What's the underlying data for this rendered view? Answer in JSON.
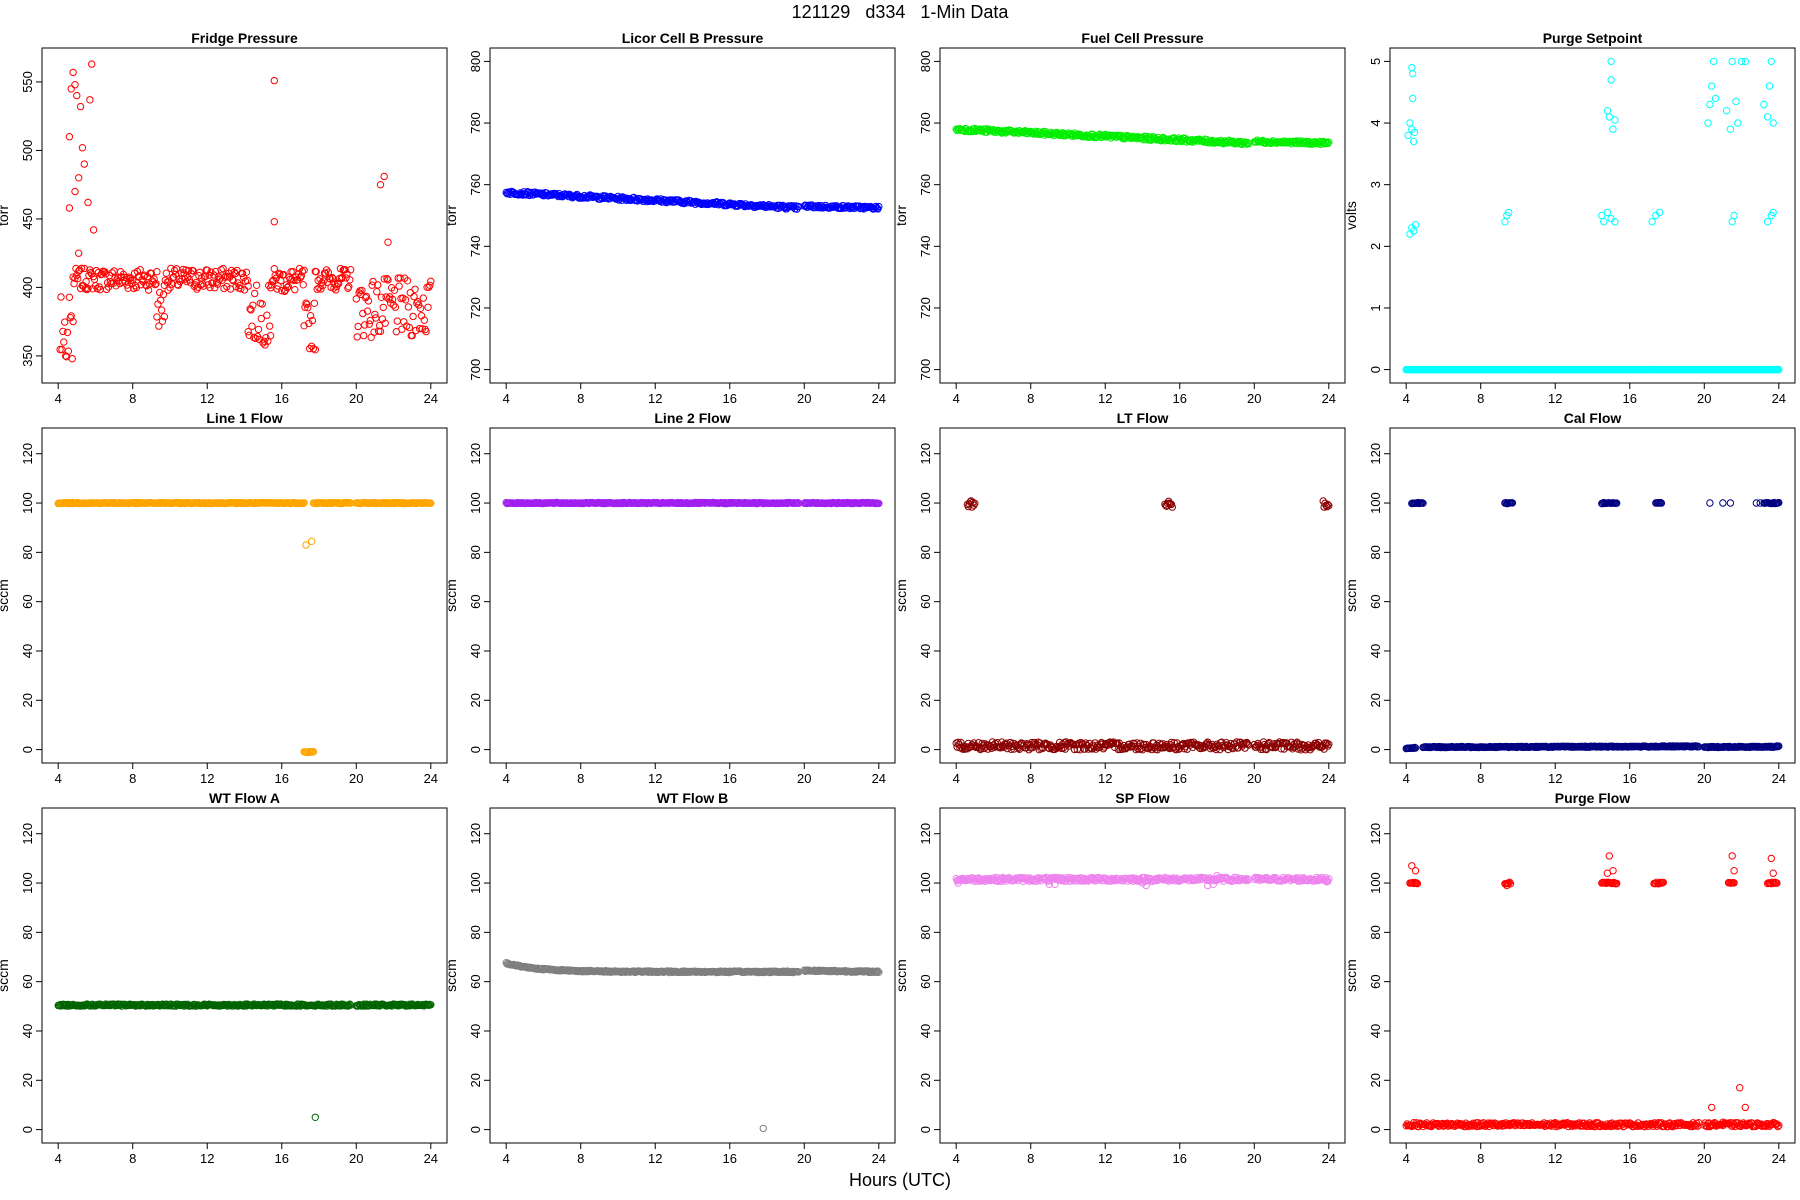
{
  "figure": {
    "title": "121129   d334   1-Min Data",
    "x_label": "Hours (UTC)"
  },
  "chart_data": [
    {
      "type": "scatter",
      "title": "Fridge Pressure",
      "ylabel": "torr",
      "color": "#ff0000",
      "xlim": [
        4,
        24
      ],
      "xticks": [
        4,
        8,
        12,
        16,
        20,
        24
      ],
      "ylim": [
        340,
        565
      ],
      "yticks": [
        350,
        400,
        450,
        500,
        550
      ],
      "series": [
        {
          "pattern": "noisy",
          "from": 4.8,
          "to": 9.3,
          "y": 406,
          "jitter": 8
        },
        {
          "pattern": "noisy",
          "from": 9.3,
          "to": 9.7,
          "y": 385,
          "jitter": 15
        },
        {
          "pattern": "noisy",
          "from": 9.7,
          "to": 14.2,
          "y": 406,
          "jitter": 8
        },
        {
          "pattern": "noisy",
          "from": 14.2,
          "to": 15.4,
          "y": 380,
          "jitter": 22
        },
        {
          "pattern": "noisy",
          "from": 15.4,
          "to": 17.2,
          "y": 405,
          "jitter": 9
        },
        {
          "pattern": "noisy",
          "from": 17.2,
          "to": 17.8,
          "y": 372,
          "jitter": 18
        },
        {
          "pattern": "noisy",
          "from": 17.8,
          "to": 19.7,
          "y": 406,
          "jitter": 8
        },
        {
          "pattern": "noisy",
          "from": 20.0,
          "to": 24.0,
          "y": 385,
          "jitter": 22
        },
        {
          "pattern": "noisy",
          "from": 4.1,
          "to": 4.8,
          "y": 370,
          "jitter": 25
        }
      ],
      "points": [
        [
          4.6,
          510
        ],
        [
          4.7,
          545
        ],
        [
          4.8,
          557
        ],
        [
          4.9,
          548
        ],
        [
          5.0,
          540
        ],
        [
          5.2,
          532
        ],
        [
          5.3,
          502
        ],
        [
          5.6,
          462
        ],
        [
          4.9,
          470
        ],
        [
          5.1,
          480
        ],
        [
          5.8,
          563
        ],
        [
          5.7,
          537
        ],
        [
          4.6,
          458
        ],
        [
          5.4,
          490
        ],
        [
          15.6,
          551
        ],
        [
          15.6,
          448
        ],
        [
          21.3,
          475
        ],
        [
          21.5,
          481
        ],
        [
          21.7,
          433
        ],
        [
          5.9,
          442
        ],
        [
          5.1,
          425
        ]
      ]
    },
    {
      "type": "scatter",
      "title": "Licor Cell B Pressure",
      "ylabel": "torr",
      "color": "#0000ff",
      "xlim": [
        4,
        24
      ],
      "xticks": [
        4,
        8,
        12,
        16,
        20,
        24
      ],
      "ylim": [
        700,
        800
      ],
      "yticks": [
        700,
        720,
        740,
        760,
        780,
        800
      ],
      "series": [
        {
          "pattern": "band",
          "from": 4.0,
          "to": 19.7,
          "y0": 757.5,
          "y1": 752.5,
          "jitter": 0.6
        },
        {
          "pattern": "band",
          "from": 20.0,
          "to": 24.0,
          "y0": 753,
          "y1": 752.5,
          "jitter": 0.5
        }
      ],
      "points": []
    },
    {
      "type": "scatter",
      "title": "Fuel Cell Pressure",
      "ylabel": "torr",
      "color": "#00ee00",
      "xlim": [
        4,
        24
      ],
      "xticks": [
        4,
        8,
        12,
        16,
        20,
        24
      ],
      "ylim": [
        700,
        800
      ],
      "yticks": [
        700,
        720,
        740,
        760,
        780,
        800
      ],
      "series": [
        {
          "pattern": "band",
          "from": 4.0,
          "to": 19.7,
          "y0": 778,
          "y1": 773.5,
          "jitter": 0.6
        },
        {
          "pattern": "band",
          "from": 20.0,
          "to": 24.0,
          "y0": 774,
          "y1": 773.5,
          "jitter": 0.5
        }
      ],
      "points": []
    },
    {
      "type": "scatter",
      "title": "Purge Setpoint",
      "ylabel": "volts",
      "color": "#00ffff",
      "xlim": [
        4,
        24
      ],
      "xticks": [
        4,
        8,
        12,
        16,
        20,
        24
      ],
      "ylim": [
        0,
        5
      ],
      "yticks": [
        0,
        1,
        2,
        3,
        4,
        5
      ],
      "series": [
        {
          "pattern": "band",
          "from": 4.0,
          "to": 24.0,
          "y0": 0,
          "y1": 0,
          "jitter": 0
        }
      ],
      "points": [
        [
          4.1,
          3.8
        ],
        [
          4.2,
          4.0
        ],
        [
          4.3,
          3.9
        ],
        [
          4.35,
          4.4
        ],
        [
          4.3,
          4.9
        ],
        [
          4.35,
          4.8
        ],
        [
          4.4,
          3.7
        ],
        [
          4.45,
          3.85
        ],
        [
          4.2,
          2.2
        ],
        [
          4.3,
          2.3
        ],
        [
          4.4,
          2.25
        ],
        [
          4.5,
          2.35
        ],
        [
          9.3,
          2.4
        ],
        [
          9.4,
          2.5
        ],
        [
          9.5,
          2.55
        ],
        [
          14.5,
          2.5
        ],
        [
          14.6,
          2.4
        ],
        [
          14.8,
          2.55
        ],
        [
          15.0,
          2.45
        ],
        [
          15.2,
          2.4
        ],
        [
          14.8,
          4.2
        ],
        [
          14.9,
          4.1
        ],
        [
          15.0,
          4.7
        ],
        [
          15.0,
          5.0
        ],
        [
          15.1,
          3.9
        ],
        [
          15.2,
          4.05
        ],
        [
          17.2,
          2.4
        ],
        [
          17.4,
          2.5
        ],
        [
          17.6,
          2.55
        ],
        [
          20.2,
          4.0
        ],
        [
          20.3,
          4.3
        ],
        [
          20.4,
          4.6
        ],
        [
          20.5,
          5.0
        ],
        [
          21.2,
          4.2
        ],
        [
          21.4,
          3.9
        ],
        [
          21.5,
          5.0
        ],
        [
          21.8,
          4.0
        ],
        [
          22.0,
          5.0
        ],
        [
          22.2,
          5.0
        ],
        [
          21.5,
          2.4
        ],
        [
          21.6,
          2.5
        ],
        [
          23.2,
          4.3
        ],
        [
          23.4,
          4.1
        ],
        [
          23.5,
          4.6
        ],
        [
          23.6,
          5.0
        ],
        [
          23.7,
          4.0
        ],
        [
          23.4,
          2.4
        ],
        [
          23.6,
          2.5
        ],
        [
          23.7,
          2.55
        ],
        [
          21.7,
          4.35
        ],
        [
          20.6,
          4.4
        ]
      ]
    },
    {
      "type": "scatter",
      "title": "Line 1 Flow",
      "ylabel": "sccm",
      "color": "#ffa500",
      "xlim": [
        4,
        24
      ],
      "xticks": [
        4,
        8,
        12,
        16,
        20,
        24
      ],
      "ylim": [
        0,
        125
      ],
      "yticks": [
        0,
        20,
        40,
        60,
        80,
        100,
        120
      ],
      "series": [
        {
          "pattern": "band",
          "from": 4.0,
          "to": 17.2,
          "y0": 100,
          "y1": 100,
          "jitter": 0.2
        },
        {
          "pattern": "band",
          "from": 17.7,
          "to": 19.7,
          "y0": 100,
          "y1": 100,
          "jitter": 0.2
        },
        {
          "pattern": "band",
          "from": 20.0,
          "to": 24.0,
          "y0": 100,
          "y1": 100,
          "jitter": 0.2
        },
        {
          "pattern": "band",
          "from": 17.2,
          "to": 17.7,
          "y0": -1,
          "y1": -1,
          "jitter": 0.2
        }
      ],
      "points": [
        [
          17.3,
          83
        ],
        [
          17.6,
          84.5
        ]
      ]
    },
    {
      "type": "scatter",
      "title": "Line 2 Flow",
      "ylabel": "sccm",
      "color": "#a020f0",
      "xlim": [
        4,
        24
      ],
      "xticks": [
        4,
        8,
        12,
        16,
        20,
        24
      ],
      "ylim": [
        0,
        125
      ],
      "yticks": [
        0,
        20,
        40,
        60,
        80,
        100,
        120
      ],
      "series": [
        {
          "pattern": "band",
          "from": 4.0,
          "to": 19.7,
          "y0": 100,
          "y1": 100,
          "jitter": 0.2
        },
        {
          "pattern": "band",
          "from": 20.0,
          "to": 24.0,
          "y0": 100,
          "y1": 100,
          "jitter": 0.2
        }
      ],
      "points": []
    },
    {
      "type": "scatter",
      "title": "LT Flow",
      "ylabel": "sccm",
      "color": "#8b0000",
      "xlim": [
        4,
        24
      ],
      "xticks": [
        4,
        8,
        12,
        16,
        20,
        24
      ],
      "ylim": [
        0,
        125
      ],
      "yticks": [
        0,
        20,
        40,
        60,
        80,
        100,
        120
      ],
      "series": [
        {
          "pattern": "noisy",
          "from": 4.0,
          "to": 19.7,
          "y": 1.5,
          "jitter": 1.6
        },
        {
          "pattern": "noisy",
          "from": 20.0,
          "to": 24.0,
          "y": 1.5,
          "jitter": 1.6
        },
        {
          "pattern": "noisy",
          "from": 4.6,
          "to": 5.0,
          "y": 99.5,
          "jitter": 1.5
        },
        {
          "pattern": "noisy",
          "from": 15.2,
          "to": 15.6,
          "y": 99.5,
          "jitter": 1.5
        },
        {
          "pattern": "noisy",
          "from": 23.7,
          "to": 24.0,
          "y": 99.5,
          "jitter": 1.5
        }
      ],
      "points": []
    },
    {
      "type": "scatter",
      "title": "Cal Flow",
      "ylabel": "sccm",
      "color": "#000080",
      "xlim": [
        4,
        24
      ],
      "xticks": [
        4,
        8,
        12,
        16,
        20,
        24
      ],
      "ylim": [
        0,
        125
      ],
      "yticks": [
        0,
        20,
        40,
        60,
        80,
        100,
        120
      ],
      "series": [
        {
          "pattern": "band",
          "from": 4.0,
          "to": 4.5,
          "y0": 0.5,
          "y1": 0.8,
          "jitter": 0.2
        },
        {
          "pattern": "band",
          "from": 4.9,
          "to": 19.7,
          "y0": 1.0,
          "y1": 1.3,
          "jitter": 0.2
        },
        {
          "pattern": "band",
          "from": 20.0,
          "to": 24.0,
          "y0": 1.0,
          "y1": 1.2,
          "jitter": 0.2
        },
        {
          "pattern": "band",
          "from": 4.3,
          "to": 4.9,
          "y0": 100,
          "y1": 100,
          "jitter": 0.2
        },
        {
          "pattern": "band",
          "from": 9.3,
          "to": 9.7,
          "y0": 100,
          "y1": 100,
          "jitter": 0.2
        },
        {
          "pattern": "band",
          "from": 14.5,
          "to": 15.3,
          "y0": 100,
          "y1": 100,
          "jitter": 0.2
        },
        {
          "pattern": "band",
          "from": 17.4,
          "to": 17.7,
          "y0": 100,
          "y1": 100,
          "jitter": 0.2
        },
        {
          "pattern": "band",
          "from": 23.2,
          "to": 24.0,
          "y0": 100,
          "y1": 100,
          "jitter": 0.2
        }
      ],
      "points": [
        [
          20.3,
          100
        ],
        [
          21.0,
          100
        ],
        [
          21.4,
          100
        ],
        [
          22.8,
          100
        ],
        [
          23.0,
          100
        ],
        [
          23.9,
          1.5
        ]
      ]
    },
    {
      "type": "scatter",
      "title": "WT Flow A",
      "ylabel": "sccm",
      "color": "#006400",
      "xlim": [
        4,
        24
      ],
      "xticks": [
        4,
        8,
        12,
        16,
        20,
        24
      ],
      "ylim": [
        0,
        125
      ],
      "yticks": [
        0,
        20,
        40,
        60,
        80,
        100,
        120
      ],
      "series": [
        {
          "pattern": "band",
          "from": 4.0,
          "to": 19.7,
          "y0": 50.5,
          "y1": 50.5,
          "jitter": 0.4
        },
        {
          "pattern": "band",
          "from": 20.0,
          "to": 24.0,
          "y0": 50.5,
          "y1": 50.5,
          "jitter": 0.4
        }
      ],
      "points": [
        [
          17.8,
          5
        ]
      ]
    },
    {
      "type": "scatter",
      "title": "WT Flow B",
      "ylabel": "sccm",
      "color": "#7f7f7f",
      "xlim": [
        4,
        24
      ],
      "xticks": [
        4,
        8,
        12,
        16,
        20,
        24
      ],
      "ylim": [
        0,
        125
      ],
      "yticks": [
        0,
        20,
        40,
        60,
        80,
        100,
        120
      ],
      "series": [
        {
          "pattern": "decay",
          "from": 4.0,
          "to": 19.7,
          "y0": 67.5,
          "y1": 64,
          "jitter": 0.3
        },
        {
          "pattern": "band",
          "from": 20.0,
          "to": 24.0,
          "y0": 64.5,
          "y1": 64,
          "jitter": 0.3
        }
      ],
      "points": [
        [
          17.8,
          0.5
        ]
      ]
    },
    {
      "type": "scatter",
      "title": "SP Flow",
      "ylabel": "sccm",
      "color": "#ee82ee",
      "xlim": [
        4,
        24
      ],
      "xticks": [
        4,
        8,
        12,
        16,
        20,
        24
      ],
      "ylim": [
        0,
        125
      ],
      "yticks": [
        0,
        20,
        40,
        60,
        80,
        100,
        120
      ],
      "series": [
        {
          "pattern": "noisy",
          "from": 4.0,
          "to": 19.7,
          "y": 101.5,
          "jitter": 0.8
        },
        {
          "pattern": "noisy",
          "from": 20.0,
          "to": 24.0,
          "y": 101.5,
          "jitter": 0.8
        }
      ],
      "points": [
        [
          4.1,
          100
        ],
        [
          9.0,
          99.5
        ],
        [
          9.3,
          99.5
        ],
        [
          14.0,
          100
        ],
        [
          14.2,
          99
        ],
        [
          17.5,
          99
        ],
        [
          17.8,
          99.5
        ],
        [
          23.9,
          100.5
        ],
        [
          18.0,
          103
        ]
      ]
    },
    {
      "type": "scatter",
      "title": "Purge Flow",
      "ylabel": "sccm",
      "color": "#ff0000",
      "xlim": [
        4,
        24
      ],
      "xticks": [
        4,
        8,
        12,
        16,
        20,
        24
      ],
      "ylim": [
        0,
        125
      ],
      "yticks": [
        0,
        20,
        40,
        60,
        80,
        100,
        120
      ],
      "series": [
        {
          "pattern": "noisy",
          "from": 4.0,
          "to": 19.7,
          "y": 2,
          "jitter": 0.8
        },
        {
          "pattern": "noisy",
          "from": 20.0,
          "to": 24.0,
          "y": 2,
          "jitter": 0.8
        },
        {
          "pattern": "band",
          "from": 4.2,
          "to": 4.6,
          "y0": 100,
          "y1": 100,
          "jitter": 0.3
        },
        {
          "pattern": "band",
          "from": 9.3,
          "to": 9.6,
          "y0": 100,
          "y1": 100,
          "jitter": 0.3
        },
        {
          "pattern": "band",
          "from": 14.5,
          "to": 15.3,
          "y0": 100,
          "y1": 100,
          "jitter": 0.3
        },
        {
          "pattern": "band",
          "from": 17.3,
          "to": 17.8,
          "y0": 100,
          "y1": 100,
          "jitter": 0.3
        },
        {
          "pattern": "band",
          "from": 21.3,
          "to": 21.6,
          "y0": 100,
          "y1": 100,
          "jitter": 0.3
        },
        {
          "pattern": "band",
          "from": 23.4,
          "to": 23.9,
          "y0": 100,
          "y1": 100,
          "jitter": 0.3
        }
      ],
      "points": [
        [
          4.3,
          107
        ],
        [
          4.5,
          105
        ],
        [
          14.9,
          111
        ],
        [
          14.8,
          104
        ],
        [
          15.1,
          105
        ],
        [
          9.4,
          99
        ],
        [
          21.5,
          111
        ],
        [
          21.6,
          105
        ],
        [
          23.6,
          110
        ],
        [
          23.7,
          104
        ],
        [
          20.4,
          9
        ],
        [
          21.9,
          17
        ],
        [
          22.2,
          9
        ],
        [
          21.0,
          3
        ],
        [
          20.6,
          2.5
        ]
      ]
    }
  ]
}
